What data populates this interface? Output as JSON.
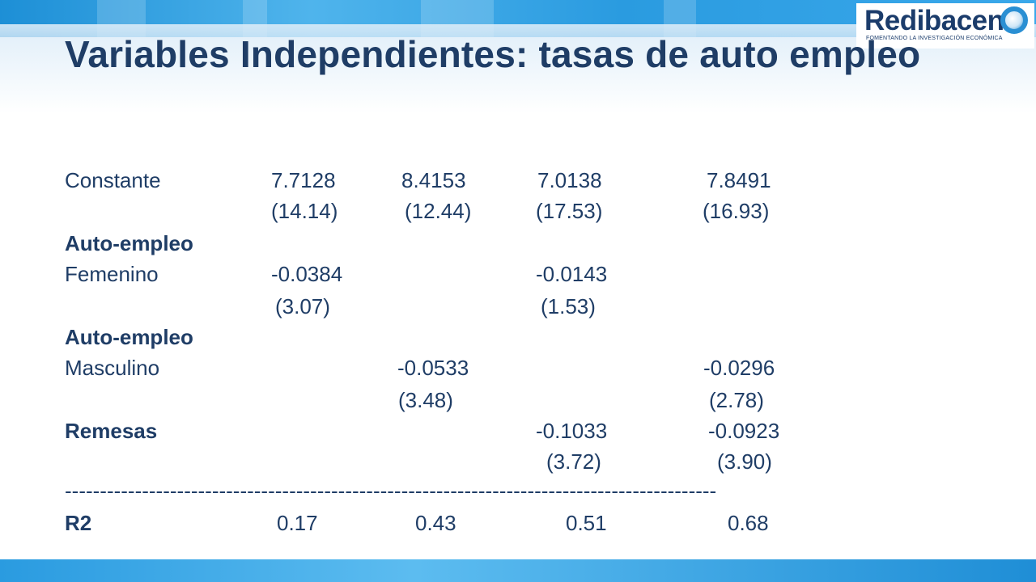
{
  "logo": {
    "name": "Redibacen",
    "tagline": "FOMENTANDO LA INVESTIGACIÓN ECONÓMICA",
    "mark_icon": "globe-ring-icon"
  },
  "title": "Variables Independientes: tasas de auto empleo",
  "table": {
    "constante": {
      "label": "Constante",
      "values": [
        "7.7128",
        "8.4153",
        "7.0138",
        "7.8491"
      ],
      "tstats": [
        "(14.14)",
        "(12.44)",
        "(17.53)",
        "(16.93)"
      ]
    },
    "auto_fem": {
      "heading": "Auto-empleo",
      "label": "Femenino",
      "values": [
        "-0.0384",
        "-0.0143"
      ],
      "tstats": [
        "(3.07)",
        "(1.53)"
      ]
    },
    "auto_masc": {
      "heading": "Auto-empleo",
      "label": "Masculino",
      "values": [
        "-0.0533",
        "-0.0296"
      ],
      "tstats": [
        "(3.48)",
        "(2.78)"
      ]
    },
    "remesas": {
      "label": "Remesas",
      "values": [
        "-0.1033",
        "-0.0923"
      ],
      "tstats": [
        "(3.72)",
        "(3.90)"
      ]
    },
    "rule": "---------------------------------------------------------------------------------------------",
    "r2": {
      "label": "R2",
      "values": [
        "0.17",
        "0.43",
        "0.51",
        "0.68"
      ]
    }
  },
  "colors": {
    "text": "#1f3d66",
    "band": "#2a9be0"
  }
}
